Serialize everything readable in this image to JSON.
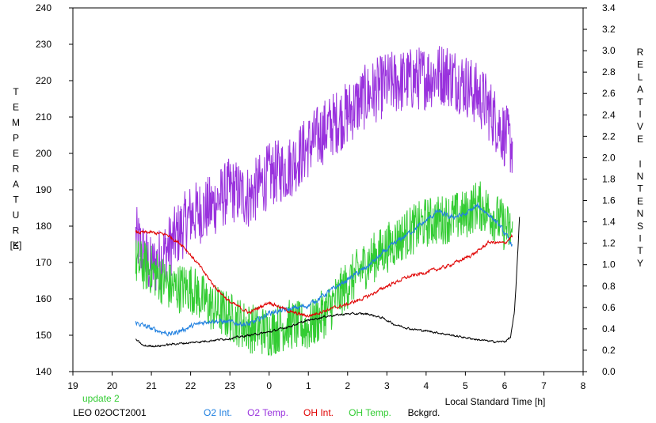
{
  "chart_data": {
    "type": "line",
    "ylabel_left": "TEMPERATURE",
    "ylabel_left_unit": "[K]",
    "ylabel_right": "RELATIVE INTENSITY",
    "xlabel": "Local Standard Time [h]",
    "xlim": [
      19,
      32
    ],
    "ylim_left": [
      140,
      240
    ],
    "ylim_right": [
      0.0,
      3.4
    ],
    "x_ticks": [
      "19",
      "20",
      "21",
      "22",
      "23",
      "0",
      "1",
      "2",
      "3",
      "4",
      "5",
      "6",
      "7",
      "8"
    ],
    "y_left_ticks": [
      "140",
      "150",
      "160",
      "170",
      "180",
      "190",
      "200",
      "210",
      "220",
      "230",
      "240"
    ],
    "y_right_ticks": [
      "0.0",
      "0.2",
      "0.4",
      "0.6",
      "0.8",
      "1.0",
      "1.2",
      "1.4",
      "1.6",
      "1.8",
      "2.0",
      "2.2",
      "2.4",
      "2.6",
      "2.8",
      "3.0",
      "3.2",
      "3.4"
    ],
    "grid": false,
    "update_note": "update 2",
    "station_date": "LEO 02OCT2001",
    "series": [
      {
        "name": "O2 Int.",
        "axis": "right",
        "color": "#2080e0",
        "noise": 0.018,
        "points": [
          [
            20.6,
            0.46
          ],
          [
            21.0,
            0.4
          ],
          [
            21.5,
            0.35
          ],
          [
            22.0,
            0.42
          ],
          [
            22.5,
            0.48
          ],
          [
            23.0,
            0.46
          ],
          [
            23.5,
            0.44
          ],
          [
            23.8,
            0.5
          ],
          [
            24.0,
            0.55
          ],
          [
            24.5,
            0.58
          ],
          [
            25.0,
            0.62
          ],
          [
            25.5,
            0.74
          ],
          [
            26.0,
            0.86
          ],
          [
            26.5,
            0.98
          ],
          [
            27.0,
            1.14
          ],
          [
            27.5,
            1.28
          ],
          [
            27.9,
            1.38
          ],
          [
            28.3,
            1.5
          ],
          [
            28.6,
            1.44
          ],
          [
            29.0,
            1.47
          ],
          [
            29.3,
            1.55
          ],
          [
            29.6,
            1.47
          ],
          [
            29.9,
            1.35
          ],
          [
            30.2,
            1.18
          ]
        ]
      },
      {
        "name": "O2 Temp.",
        "axis": "left",
        "color": "#9932dd",
        "noise": 9,
        "points": [
          [
            20.6,
            177
          ],
          [
            21.0,
            168
          ],
          [
            21.5,
            175
          ],
          [
            22.0,
            183
          ],
          [
            22.5,
            185
          ],
          [
            23.0,
            190
          ],
          [
            23.5,
            188
          ],
          [
            24.0,
            194
          ],
          [
            24.5,
            196
          ],
          [
            25.0,
            202
          ],
          [
            25.5,
            207
          ],
          [
            26.0,
            211
          ],
          [
            26.5,
            216
          ],
          [
            27.0,
            219
          ],
          [
            27.5,
            220
          ],
          [
            28.0,
            221
          ],
          [
            28.5,
            222
          ],
          [
            29.0,
            219
          ],
          [
            29.5,
            214
          ],
          [
            30.0,
            205
          ],
          [
            30.2,
            202
          ]
        ]
      },
      {
        "name": "OH Int.",
        "axis": "right",
        "color": "#e00000",
        "noise": 0.012,
        "points": [
          [
            20.6,
            1.3
          ],
          [
            21.0,
            1.3
          ],
          [
            21.4,
            1.28
          ],
          [
            21.8,
            1.18
          ],
          [
            22.2,
            1.0
          ],
          [
            22.6,
            0.8
          ],
          [
            23.0,
            0.65
          ],
          [
            23.5,
            0.55
          ],
          [
            24.0,
            0.65
          ],
          [
            24.3,
            0.6
          ],
          [
            24.6,
            0.55
          ],
          [
            25.0,
            0.52
          ],
          [
            25.5,
            0.58
          ],
          [
            26.0,
            0.63
          ],
          [
            26.5,
            0.7
          ],
          [
            27.0,
            0.8
          ],
          [
            27.5,
            0.88
          ],
          [
            28.0,
            0.93
          ],
          [
            28.5,
            0.98
          ],
          [
            29.0,
            1.06
          ],
          [
            29.3,
            1.12
          ],
          [
            29.6,
            1.21
          ],
          [
            30.0,
            1.2
          ],
          [
            30.2,
            1.27
          ]
        ]
      },
      {
        "name": "OH Temp.",
        "axis": "left",
        "color": "#33cc33",
        "noise": 7,
        "points": [
          [
            20.6,
            170
          ],
          [
            21.0,
            168
          ],
          [
            21.5,
            163
          ],
          [
            22.0,
            163
          ],
          [
            22.5,
            158
          ],
          [
            23.0,
            155
          ],
          [
            23.5,
            152
          ],
          [
            24.0,
            151
          ],
          [
            24.5,
            153
          ],
          [
            25.0,
            152
          ],
          [
            25.5,
            157
          ],
          [
            26.0,
            164
          ],
          [
            26.5,
            170
          ],
          [
            27.0,
            174
          ],
          [
            27.5,
            178
          ],
          [
            28.0,
            181
          ],
          [
            28.5,
            182
          ],
          [
            29.0,
            183
          ],
          [
            29.3,
            186
          ],
          [
            29.6,
            184
          ],
          [
            30.0,
            180
          ],
          [
            30.2,
            178
          ]
        ]
      },
      {
        "name": "Bckgrd.",
        "axis": "right",
        "color": "#000000",
        "noise": 0.007,
        "points": [
          [
            20.6,
            0.3
          ],
          [
            20.8,
            0.24
          ],
          [
            21.2,
            0.24
          ],
          [
            21.6,
            0.26
          ],
          [
            22.0,
            0.27
          ],
          [
            22.5,
            0.29
          ],
          [
            23.0,
            0.31
          ],
          [
            23.5,
            0.34
          ],
          [
            24.0,
            0.37
          ],
          [
            24.5,
            0.42
          ],
          [
            25.0,
            0.48
          ],
          [
            25.5,
            0.52
          ],
          [
            26.0,
            0.54
          ],
          [
            26.5,
            0.54
          ],
          [
            26.9,
            0.5
          ],
          [
            27.2,
            0.44
          ],
          [
            27.6,
            0.4
          ],
          [
            28.2,
            0.37
          ],
          [
            28.8,
            0.33
          ],
          [
            29.3,
            0.3
          ],
          [
            29.7,
            0.28
          ],
          [
            30.0,
            0.28
          ],
          [
            30.15,
            0.32
          ],
          [
            30.25,
            0.55
          ],
          [
            30.32,
            1.0
          ],
          [
            30.38,
            1.45
          ]
        ]
      }
    ]
  }
}
